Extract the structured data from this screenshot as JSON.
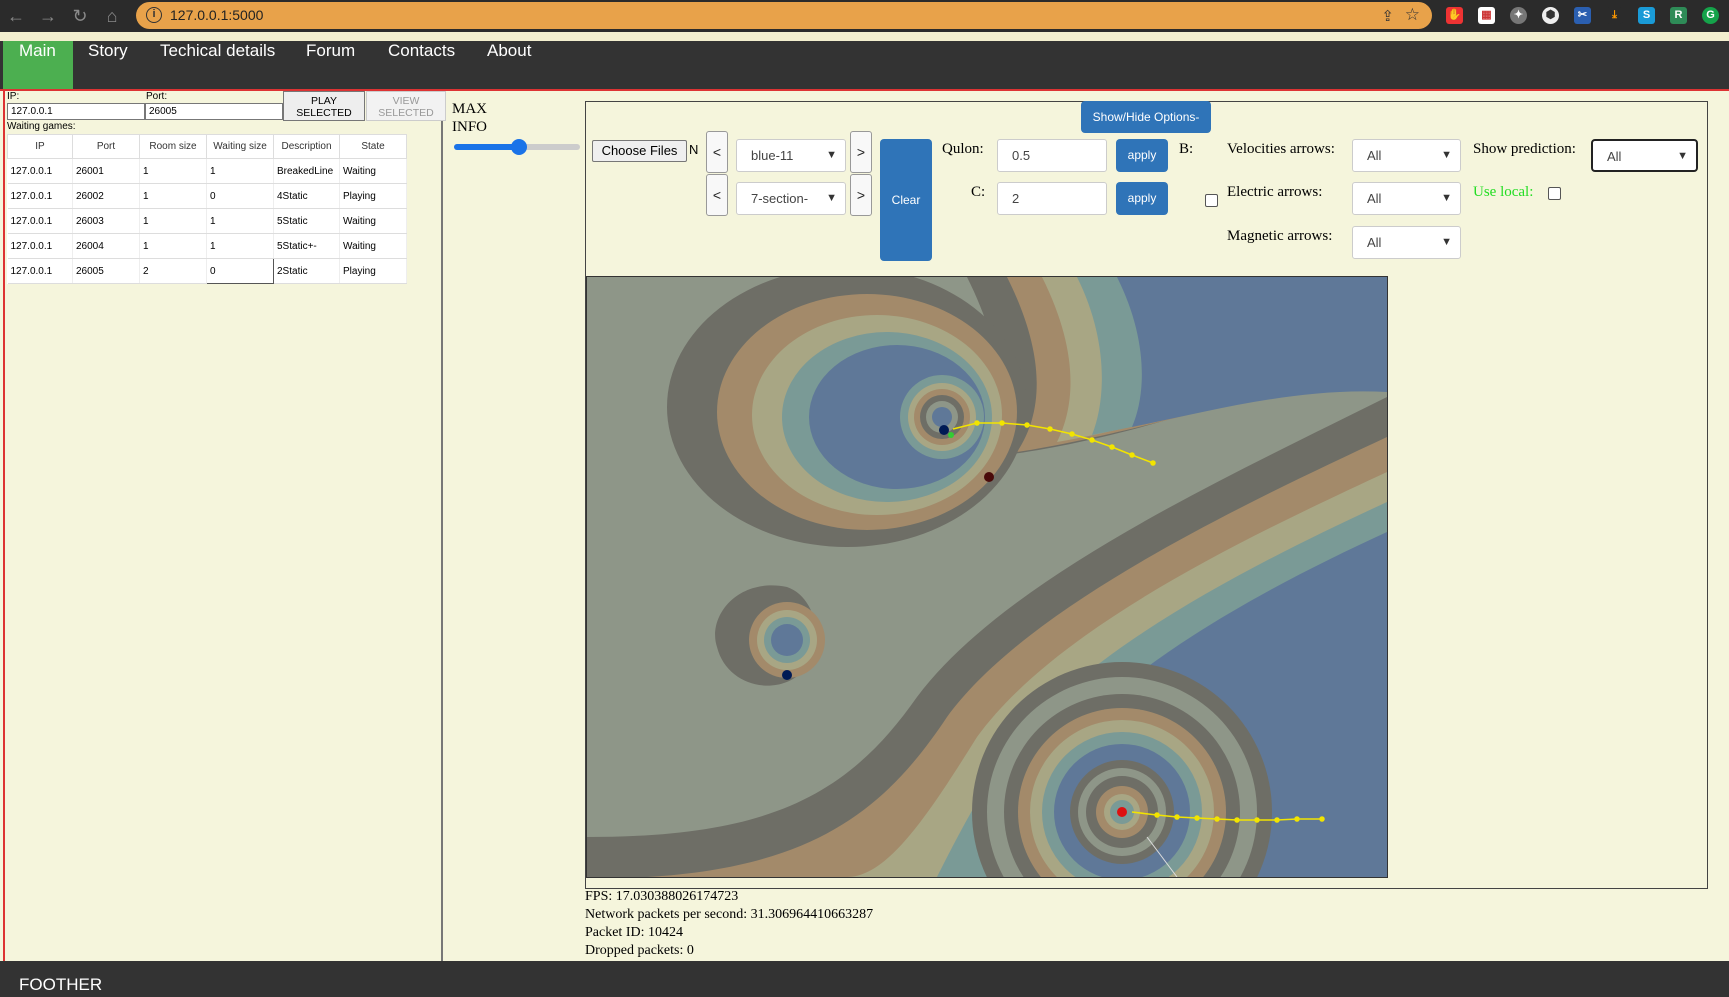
{
  "browser": {
    "url": "127.0.0.1:5000"
  },
  "nav": {
    "items": [
      "Main",
      "Story",
      "Techical details",
      "Forum",
      "Contacts",
      "About"
    ]
  },
  "lobby": {
    "ip_label": "IP:",
    "ip_value": "127.0.0.1",
    "port_label": "Port:",
    "port_value": "26005",
    "play_label": "PLAY SELECTED",
    "view_label": "VIEW SELECTED",
    "waiting_label": "Waiting games:",
    "columns": [
      "IP",
      "Port",
      "Room size",
      "Waiting size",
      "Description",
      "State"
    ],
    "rows": [
      [
        "127.0.0.1",
        "26001",
        "1",
        "1",
        "BreakedLine",
        "Waiting"
      ],
      [
        "127.0.0.1",
        "26002",
        "1",
        "0",
        "4Static",
        "Playing"
      ],
      [
        "127.0.0.1",
        "26003",
        "1",
        "1",
        "5Static",
        "Waiting"
      ],
      [
        "127.0.0.1",
        "26004",
        "1",
        "1",
        "5Static+-",
        "Waiting"
      ],
      [
        "127.0.0.1",
        "26005",
        "2",
        "0",
        "2Static",
        "Playing"
      ]
    ]
  },
  "info": {
    "line1": "MAX",
    "line2": "INFO",
    "slider_fraction": 0.5
  },
  "options": {
    "toggle_label": "Show/Hide Options-",
    "choose_files": "Choose Files",
    "no_file": "N",
    "prev": "<",
    "next": ">",
    "palette_value": "blue-11",
    "section_value": "7-section-",
    "clear_label": "Clear",
    "qulon_label": "Qulon:",
    "qulon_value": "0.5",
    "c_label": "C:",
    "c_value": "2",
    "apply_label": "apply",
    "b_label": "B:",
    "velocities_label": "Velocities arrows:",
    "velocities_value": "All",
    "electric_label": "Electric arrows:",
    "electric_value": "All",
    "magnetic_label": "Magnetic arrows:",
    "magnetic_value": "All",
    "prediction_label": "Show prediction:",
    "prediction_value": "All",
    "use_local_label": "Use local:"
  },
  "stats": {
    "fps": "FPS: 17.030388026174723",
    "packets": "Network packets per second: 31.306964410663287",
    "packet_id": "Packet ID: 10424",
    "dropped": "Dropped packets: 0"
  },
  "footer": {
    "text": "FOOTHER"
  },
  "colors": {
    "address_bar": "#e8a24a",
    "nav_active": "#4caf50",
    "button_blue": "#2f74b8",
    "page_bg": "#f5f5dc",
    "use_local_green": "#22dd22"
  }
}
